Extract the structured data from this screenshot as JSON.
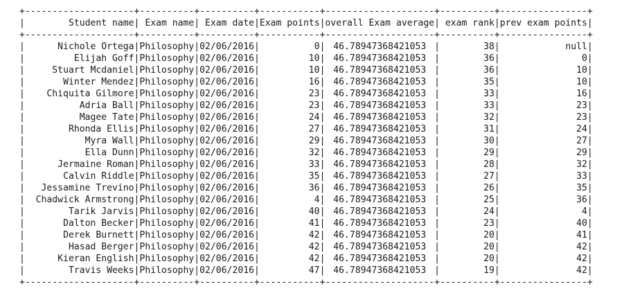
{
  "table": {
    "columns": [
      {
        "label": "Student name",
        "width": 20,
        "align": "right",
        "key": "student"
      },
      {
        "label": "Exam name",
        "width": 10,
        "align": "right",
        "key": "exam"
      },
      {
        "label": "Exam date",
        "width": 10,
        "align": "right",
        "key": "date"
      },
      {
        "label": "Exam points",
        "width": 11,
        "align": "right",
        "key": "points"
      },
      {
        "label": "overall Exam average",
        "width": 20,
        "align": "center",
        "key": "avg"
      },
      {
        "label": "exam rank",
        "width": 10,
        "align": "right",
        "key": "rank"
      },
      {
        "label": "prev exam points",
        "width": 16,
        "align": "right",
        "key": "prev"
      }
    ],
    "rows": [
      {
        "student": "Nichole Ortega",
        "exam": "Philosophy",
        "date": "02/06/2016",
        "points": "0",
        "avg": "46.78947368421053",
        "rank": "38",
        "prev": "null"
      },
      {
        "student": "Elijah Goff",
        "exam": "Philosophy",
        "date": "02/06/2016",
        "points": "10",
        "avg": "46.78947368421053",
        "rank": "36",
        "prev": "0"
      },
      {
        "student": "Stuart Mcdaniel",
        "exam": "Philosophy",
        "date": "02/06/2016",
        "points": "10",
        "avg": "46.78947368421053",
        "rank": "36",
        "prev": "10"
      },
      {
        "student": "Winter Mendez",
        "exam": "Philosophy",
        "date": "02/06/2016",
        "points": "16",
        "avg": "46.78947368421053",
        "rank": "35",
        "prev": "10"
      },
      {
        "student": "Chiquita Gilmore",
        "exam": "Philosophy",
        "date": "02/06/2016",
        "points": "23",
        "avg": "46.78947368421053",
        "rank": "33",
        "prev": "16"
      },
      {
        "student": "Adria Ball",
        "exam": "Philosophy",
        "date": "02/06/2016",
        "points": "23",
        "avg": "46.78947368421053",
        "rank": "33",
        "prev": "23"
      },
      {
        "student": "Magee Tate",
        "exam": "Philosophy",
        "date": "02/06/2016",
        "points": "24",
        "avg": "46.78947368421053",
        "rank": "32",
        "prev": "23"
      },
      {
        "student": "Rhonda Ellis",
        "exam": "Philosophy",
        "date": "02/06/2016",
        "points": "27",
        "avg": "46.78947368421053",
        "rank": "31",
        "prev": "24"
      },
      {
        "student": "Myra Wall",
        "exam": "Philosophy",
        "date": "02/06/2016",
        "points": "29",
        "avg": "46.78947368421053",
        "rank": "30",
        "prev": "27"
      },
      {
        "student": "Ella Dunn",
        "exam": "Philosophy",
        "date": "02/06/2016",
        "points": "32",
        "avg": "46.78947368421053",
        "rank": "29",
        "prev": "29"
      },
      {
        "student": "Jermaine Roman",
        "exam": "Philosophy",
        "date": "02/06/2016",
        "points": "33",
        "avg": "46.78947368421053",
        "rank": "28",
        "prev": "32"
      },
      {
        "student": "Calvin Riddle",
        "exam": "Philosophy",
        "date": "02/06/2016",
        "points": "35",
        "avg": "46.78947368421053",
        "rank": "27",
        "prev": "33"
      },
      {
        "student": "Jessamine Trevino",
        "exam": "Philosophy",
        "date": "02/06/2016",
        "points": "36",
        "avg": "46.78947368421053",
        "rank": "26",
        "prev": "35"
      },
      {
        "student": "Chadwick Armstrong",
        "exam": "Philosophy",
        "date": "02/06/2016",
        "points": "4",
        "avg": "46.78947368421053",
        "rank": "25",
        "prev": "36"
      },
      {
        "student": "Tarik Jarvis",
        "exam": "Philosophy",
        "date": "02/06/2016",
        "points": "40",
        "avg": "46.78947368421053",
        "rank": "24",
        "prev": "4"
      },
      {
        "student": "Dalton Becker",
        "exam": "Philosophy",
        "date": "02/06/2016",
        "points": "41",
        "avg": "46.78947368421053",
        "rank": "23",
        "prev": "40"
      },
      {
        "student": "Derek Burnett",
        "exam": "Philosophy",
        "date": "02/06/2016",
        "points": "42",
        "avg": "46.78947368421053",
        "rank": "20",
        "prev": "41"
      },
      {
        "student": "Hasad Berger",
        "exam": "Philosophy",
        "date": "02/06/2016",
        "points": "42",
        "avg": "46.78947368421053",
        "rank": "20",
        "prev": "42"
      },
      {
        "student": "Kieran English",
        "exam": "Philosophy",
        "date": "02/06/2016",
        "points": "42",
        "avg": "46.78947368421053",
        "rank": "20",
        "prev": "42"
      },
      {
        "student": "Travis Weeks",
        "exam": "Philosophy",
        "date": "02/06/2016",
        "points": "47",
        "avg": "46.78947368421053",
        "rank": "19",
        "prev": "42"
      }
    ]
  },
  "colors": {
    "text": "#1a1a1a",
    "background": "#ffffff"
  }
}
